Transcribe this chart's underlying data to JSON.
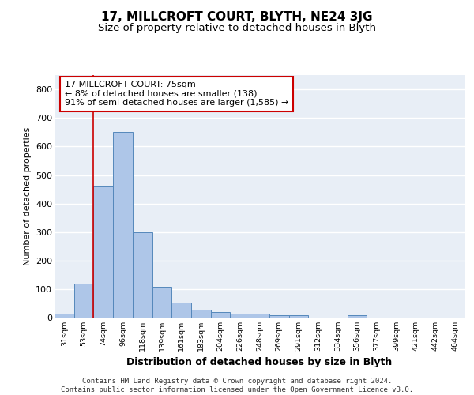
{
  "title": "17, MILLCROFT COURT, BLYTH, NE24 3JG",
  "subtitle": "Size of property relative to detached houses in Blyth",
  "xlabel": "Distribution of detached houses by size in Blyth",
  "ylabel": "Number of detached properties",
  "footer": "Contains HM Land Registry data © Crown copyright and database right 2024.\nContains public sector information licensed under the Open Government Licence v3.0.",
  "bar_labels": [
    "31sqm",
    "53sqm",
    "74sqm",
    "96sqm",
    "118sqm",
    "139sqm",
    "161sqm",
    "183sqm",
    "204sqm",
    "226sqm",
    "248sqm",
    "269sqm",
    "291sqm",
    "312sqm",
    "334sqm",
    "356sqm",
    "377sqm",
    "399sqm",
    "421sqm",
    "442sqm",
    "464sqm"
  ],
  "bar_values": [
    15,
    120,
    460,
    650,
    300,
    110,
    55,
    30,
    20,
    15,
    15,
    10,
    10,
    0,
    0,
    10,
    0,
    0,
    0,
    0,
    0
  ],
  "bar_color": "#aec6e8",
  "bar_edge_color": "#5588bb",
  "annotation_box_text": "17 MILLCROFT COURT: 75sqm\n← 8% of detached houses are smaller (138)\n91% of semi-detached houses are larger (1,585) →",
  "vline_x_index": 2,
  "ylim": [
    0,
    850
  ],
  "yticks": [
    0,
    100,
    200,
    300,
    400,
    500,
    600,
    700,
    800
  ],
  "background_color": "#e8eef6",
  "grid_color": "#ffffff",
  "title_fontsize": 11,
  "subtitle_fontsize": 9.5,
  "xlabel_fontsize": 9,
  "ylabel_fontsize": 8,
  "footer_fontsize": 6.5
}
